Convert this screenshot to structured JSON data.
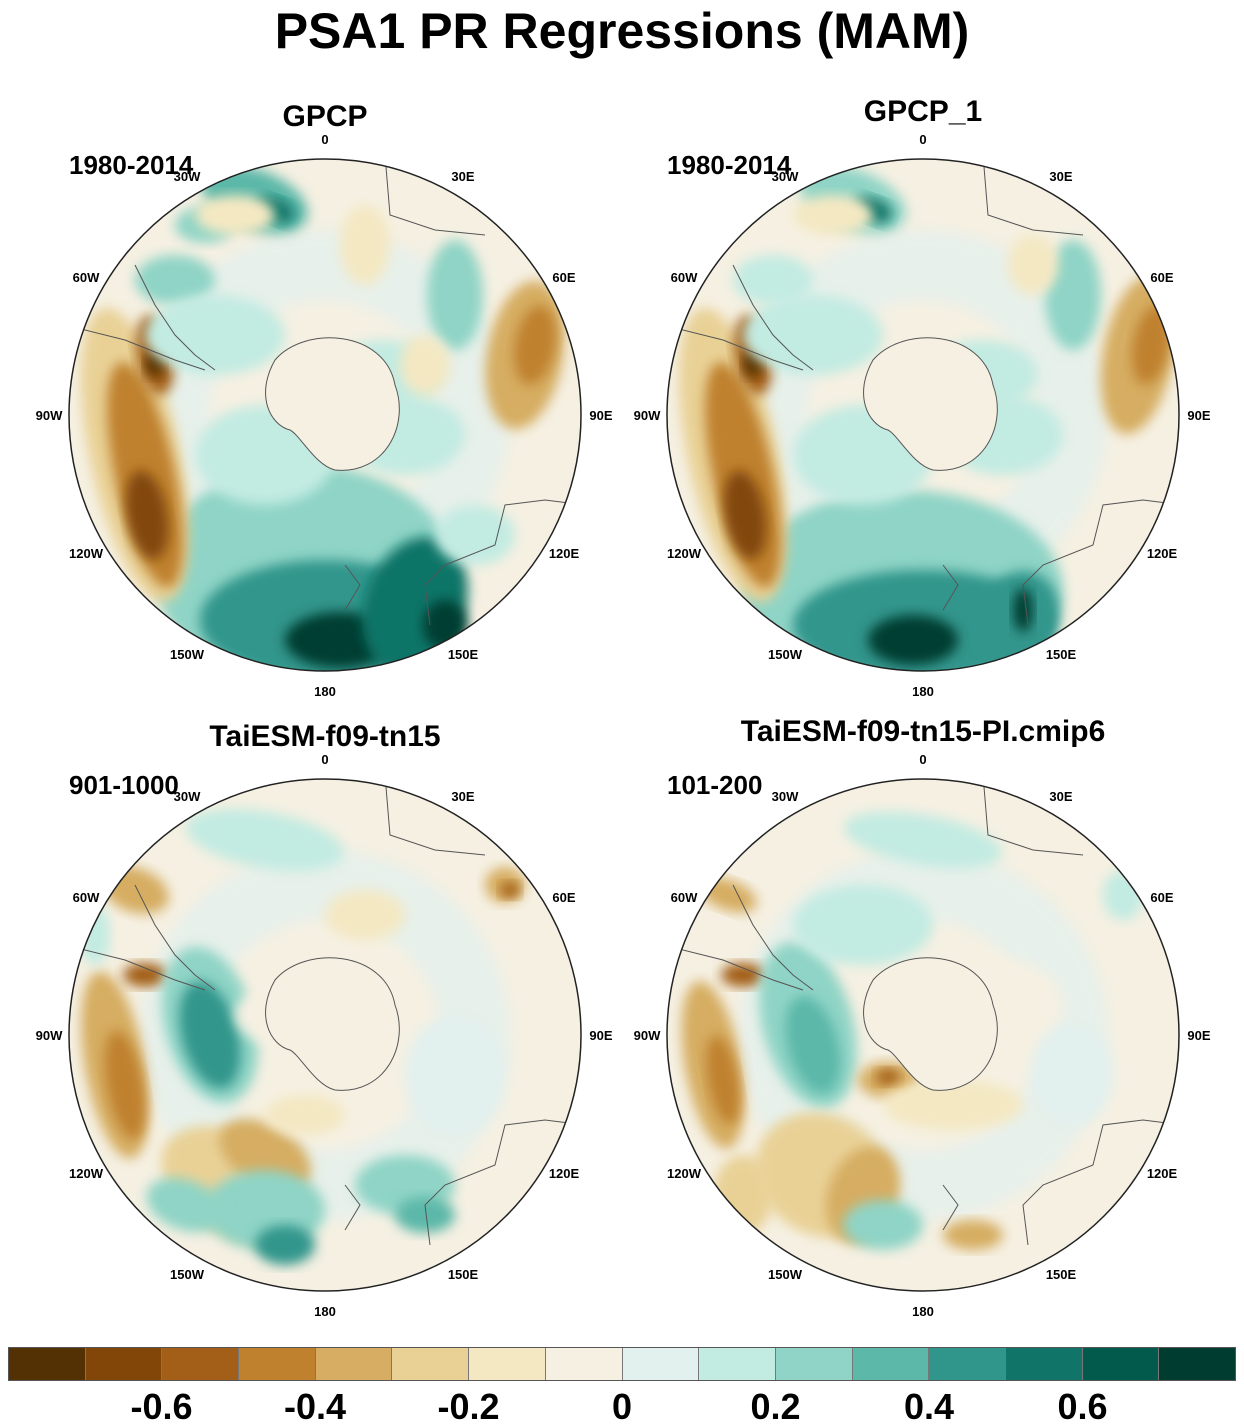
{
  "title": "PSA1 PR Regressions (MAM)",
  "longitude_labels": [
    "0",
    "30E",
    "60E",
    "90E",
    "120E",
    "150E",
    "180",
    "150W",
    "120W",
    "90W",
    "60W",
    "30W"
  ],
  "panels": [
    {
      "name": "GPCP",
      "period": "1980-2014"
    },
    {
      "name": "GPCP_1",
      "period": "1980-2014"
    },
    {
      "name": "TaiESM-f09-tn15",
      "period": "901-1000"
    },
    {
      "name": "TaiESM-f09-tn15-PI.cmip6",
      "period": "101-200"
    }
  ],
  "colorbar": {
    "colors": [
      "#543005",
      "#814608",
      "#a35f18",
      "#bf812d",
      "#d6ad62",
      "#e9d196",
      "#f4e8c2",
      "#f5f0e2",
      "#e2f0ee",
      "#c2ebe2",
      "#8fd4c6",
      "#5cb8a9",
      "#30968c",
      "#117468",
      "#015a4c",
      "#003d30"
    ],
    "labels": [
      "-0.6",
      "-0.4",
      "-0.2",
      "0",
      "0.2",
      "0.4",
      "0.6"
    ]
  }
}
